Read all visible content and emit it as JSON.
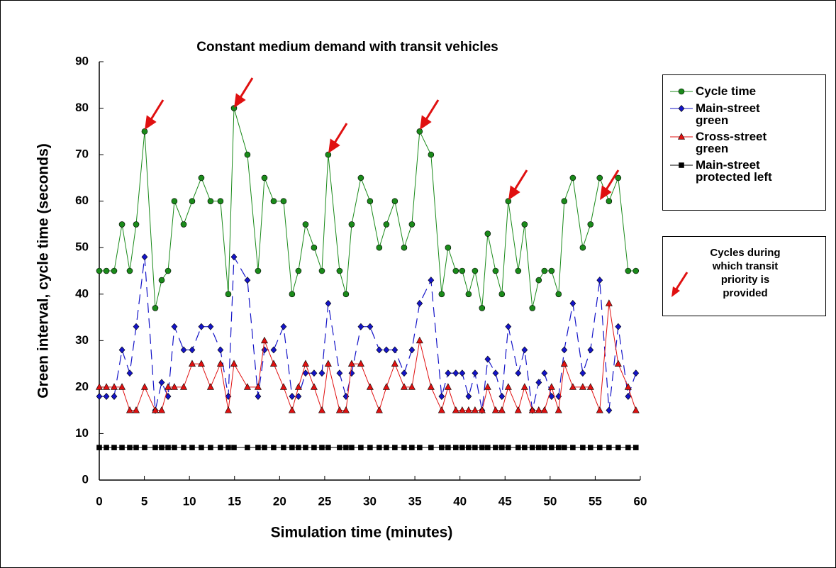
{
  "chart_data": {
    "type": "line",
    "title": "Constant medium demand with transit vehicles",
    "x_label": "Simulation time (minutes)",
    "y_label": "Green interval, cycle time (seconds)",
    "annotation": "Cycles during which transit priority is provided",
    "xlim": [
      0,
      60
    ],
    "xticks": [
      0,
      5,
      10,
      15,
      20,
      25,
      30,
      35,
      40,
      45,
      50,
      55,
      60
    ],
    "ylim": [
      0,
      90
    ],
    "yticks": [
      0,
      10,
      20,
      30,
      40,
      50,
      60,
      70,
      80,
      90
    ],
    "x": [
      0,
      0.79,
      1.65,
      2.52,
      3.38,
      4.09,
      5.03,
      6.21,
      6.92,
      7.63,
      8.33,
      9.36,
      10.3,
      11.32,
      12.34,
      13.44,
      14.31,
      14.94,
      16.43,
      17.61,
      18.32,
      19.34,
      20.44,
      21.38,
      22.09,
      22.88,
      23.82,
      24.69,
      25.39,
      26.65,
      27.36,
      27.99,
      29.01,
      30.03,
      31.05,
      31.84,
      32.78,
      33.81,
      34.67,
      35.53,
      36.79,
      37.97,
      38.68,
      39.54,
      40.25,
      40.96,
      41.67,
      42.45,
      43.08,
      43.95,
      44.65,
      45.36,
      46.46,
      47.17,
      48.03,
      48.74,
      49.37,
      50.16,
      50.94,
      51.57,
      52.52,
      53.62,
      54.48,
      55.5,
      56.53,
      57.55,
      58.65,
      59.51
    ],
    "series": [
      {
        "name": "Cycle time",
        "color": "#1a8a1a",
        "marker": "circle",
        "dash": false,
        "values": [
          45,
          45,
          45,
          55,
          45,
          55,
          75,
          37,
          43,
          45,
          60,
          55,
          60,
          65,
          60,
          60,
          40,
          80,
          70,
          45,
          65,
          60,
          60,
          40,
          45,
          55,
          50,
          45,
          70,
          45,
          40,
          55,
          65,
          60,
          50,
          55,
          60,
          50,
          55,
          75,
          70,
          40,
          50,
          45,
          45,
          40,
          45,
          37,
          53,
          45,
          40,
          60,
          45,
          55,
          37,
          43,
          45,
          45,
          40,
          60,
          65,
          50,
          55,
          65,
          60,
          65,
          45,
          45
        ]
      },
      {
        "name": "Main-street green",
        "color": "#1414c8",
        "marker": "diamond",
        "dash": true,
        "values": [
          18,
          18,
          18,
          28,
          23,
          33,
          48,
          15,
          21,
          18,
          33,
          28,
          28,
          33,
          33,
          28,
          18,
          48,
          43,
          18,
          28,
          28,
          33,
          18,
          18,
          23,
          23,
          23,
          38,
          23,
          18,
          23,
          33,
          33,
          28,
          28,
          28,
          23,
          28,
          38,
          43,
          18,
          23,
          23,
          23,
          18,
          23,
          15,
          26,
          23,
          18,
          33,
          23,
          28,
          15,
          21,
          23,
          18,
          18,
          28,
          38,
          23,
          28,
          43,
          15,
          33,
          18,
          23
        ]
      },
      {
        "name": "Cross-street green",
        "color": "#e01010",
        "marker": "triangle",
        "dash": false,
        "values": [
          20,
          20,
          20,
          20,
          15,
          15,
          20,
          15,
          15,
          20,
          20,
          20,
          25,
          25,
          20,
          25,
          15,
          25,
          20,
          20,
          30,
          25,
          20,
          15,
          20,
          25,
          20,
          15,
          25,
          15,
          15,
          25,
          25,
          20,
          15,
          20,
          25,
          20,
          20,
          30,
          20,
          15,
          20,
          15,
          15,
          15,
          15,
          15,
          20,
          15,
          15,
          20,
          15,
          20,
          15,
          15,
          15,
          20,
          15,
          25,
          20,
          20,
          20,
          15,
          38,
          25,
          20,
          15
        ]
      },
      {
        "name": "Main-street protected left",
        "color": "#000000",
        "marker": "square",
        "dash": false,
        "values": [
          7,
          7,
          7,
          7,
          7,
          7,
          7,
          7,
          7,
          7,
          7,
          7,
          7,
          7,
          7,
          7,
          7,
          7,
          7,
          7,
          7,
          7,
          7,
          7,
          7,
          7,
          7,
          7,
          7,
          7,
          7,
          7,
          7,
          7,
          7,
          7,
          7,
          7,
          7,
          7,
          7,
          7,
          7,
          7,
          7,
          7,
          7,
          7,
          7,
          7,
          7,
          7,
          7,
          7,
          7,
          7,
          7,
          7,
          7,
          7,
          7,
          7,
          7,
          7,
          7,
          7,
          7,
          7
        ]
      }
    ]
  }
}
